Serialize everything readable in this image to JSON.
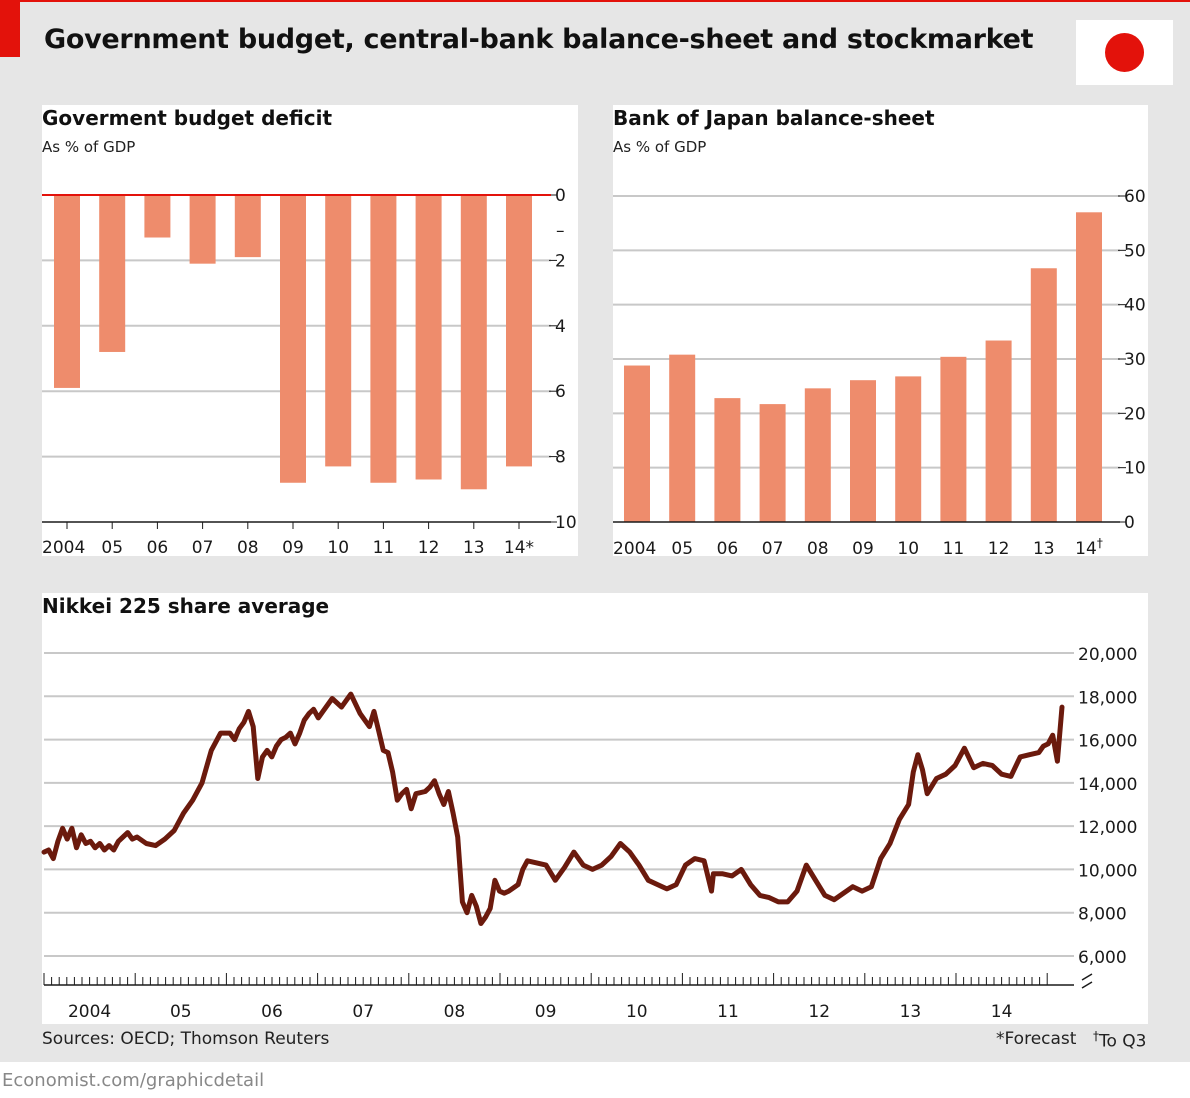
{
  "title": "Government budget, central-bank balance-sheet and stockmarket",
  "footer": {
    "sources": "Sources: OECD; Thomson Reuters",
    "note_forecast": "*Forecast",
    "note_q3_mark": "†",
    "note_q3_text": "To Q3",
    "brand": "Economist.com/graphicdetail"
  },
  "colors": {
    "bar": "#ee8c6c",
    "zero_line": "#e3120b",
    "nikkei_line": "#6b1a0d",
    "grid": "#c8c8c8",
    "panel_bg": "#ffffff",
    "page_bg": "#e6e6e6",
    "accent_red": "#e3120b"
  },
  "icons": {
    "flag": "japan-flag-icon",
    "axis_break": "axis-break-icon"
  },
  "chart_data": [
    {
      "id": "deficit",
      "type": "bar",
      "title": "Goverment budget deficit",
      "subtitle": "As % of GDP",
      "categories": [
        "2004",
        "05",
        "06",
        "07",
        "08",
        "09",
        "10",
        "11",
        "12",
        "13",
        "14*"
      ],
      "values": [
        5.9,
        4.8,
        1.3,
        2.1,
        1.9,
        8.8,
        8.3,
        8.8,
        8.7,
        9.0,
        8.3
      ],
      "ylim": [
        0,
        10
      ],
      "y_inverted": true,
      "yticks": [
        0,
        2,
        4,
        6,
        8,
        10
      ],
      "ytick_labels": [
        "0",
        "2",
        "4",
        "6",
        "8",
        "10"
      ],
      "minus_marker": "–",
      "axis_side": "right",
      "grid": true
    },
    {
      "id": "boj",
      "type": "bar",
      "title": "Bank of Japan balance-sheet",
      "subtitle": "As % of GDP",
      "categories": [
        "2004",
        "05",
        "06",
        "07",
        "08",
        "09",
        "10",
        "11",
        "12",
        "13",
        "14"
      ],
      "last_category_mark": "†",
      "values": [
        28.8,
        30.8,
        22.8,
        21.7,
        24.6,
        26.1,
        26.8,
        30.4,
        33.4,
        46.7,
        57.0
      ],
      "ylim": [
        0,
        60
      ],
      "yticks": [
        0,
        10,
        20,
        30,
        40,
        50,
        60
      ],
      "ytick_labels": [
        "0",
        "10",
        "20",
        "30",
        "40",
        "50",
        "60"
      ],
      "axis_side": "right",
      "grid": true
    },
    {
      "id": "nikkei",
      "type": "line",
      "title": "Nikkei 225 share average",
      "xlim": [
        2004.0,
        2014.95
      ],
      "ylim": [
        6000,
        20000
      ],
      "yticks": [
        6000,
        8000,
        10000,
        12000,
        14000,
        16000,
        18000,
        20000
      ],
      "ytick_labels": [
        "6,000",
        "8,000",
        "10,000",
        "12,000",
        "14,000",
        "16,000",
        "18,000",
        "20,000"
      ],
      "xtick_labels": [
        "2004",
        "05",
        "06",
        "07",
        "08",
        "09",
        "10",
        "11",
        "12",
        "13",
        "14"
      ],
      "axis_side": "right",
      "grid": true,
      "x": [
        2004.0,
        2004.05,
        2004.1,
        2004.15,
        2004.2,
        2004.25,
        2004.3,
        2004.35,
        2004.4,
        2004.45,
        2004.5,
        2004.55,
        2004.6,
        2004.65,
        2004.7,
        2004.75,
        2004.8,
        2004.85,
        2004.9,
        2004.95,
        2005.0,
        2005.1,
        2005.2,
        2005.3,
        2005.4,
        2005.5,
        2005.6,
        2005.7,
        2005.8,
        2005.9,
        2006.0,
        2006.05,
        2006.1,
        2006.15,
        2006.2,
        2006.25,
        2006.3,
        2006.35,
        2006.4,
        2006.45,
        2006.5,
        2006.55,
        2006.6,
        2006.65,
        2006.7,
        2006.75,
        2006.8,
        2006.85,
        2006.9,
        2006.95,
        2007.0,
        2007.1,
        2007.2,
        2007.3,
        2007.4,
        2007.5,
        2007.55,
        2007.6,
        2007.65,
        2007.7,
        2007.75,
        2007.8,
        2007.85,
        2007.9,
        2007.95,
        2008.0,
        2008.1,
        2008.15,
        2008.2,
        2008.25,
        2008.3,
        2008.35,
        2008.4,
        2008.45,
        2008.5,
        2008.55,
        2008.6,
        2008.65,
        2008.7,
        2008.75,
        2008.8,
        2008.85,
        2008.9,
        2008.95,
        2009.0,
        2009.1,
        2009.15,
        2009.2,
        2009.3,
        2009.4,
        2009.5,
        2009.6,
        2009.7,
        2009.8,
        2009.9,
        2010.0,
        2010.1,
        2010.2,
        2010.3,
        2010.4,
        2010.5,
        2010.6,
        2010.7,
        2010.8,
        2010.9,
        2011.0,
        2011.1,
        2011.18,
        2011.2,
        2011.3,
        2011.4,
        2011.5,
        2011.6,
        2011.7,
        2011.8,
        2011.9,
        2012.0,
        2012.1,
        2012.2,
        2012.3,
        2012.4,
        2012.5,
        2012.6,
        2012.7,
        2012.8,
        2012.9,
        2013.0,
        2013.1,
        2013.2,
        2013.3,
        2013.35,
        2013.4,
        2013.45,
        2013.5,
        2013.6,
        2013.7,
        2013.8,
        2013.9,
        2014.0,
        2014.05,
        2014.1,
        2014.2,
        2014.3,
        2014.4,
        2014.5,
        2014.6,
        2014.7,
        2014.75,
        2014.8,
        2014.85,
        2014.9,
        2014.95
      ],
      "y": [
        10800,
        10900,
        10500,
        11300,
        11900,
        11400,
        11900,
        11000,
        11600,
        11200,
        11300,
        11000,
        11200,
        10900,
        11100,
        10900,
        11300,
        11500,
        11700,
        11400,
        11500,
        11200,
        11100,
        11400,
        11800,
        12600,
        13200,
        14000,
        15500,
        16300,
        16300,
        16000,
        16500,
        16800,
        17300,
        16600,
        14200,
        15200,
        15500,
        15200,
        15700,
        16000,
        16100,
        16300,
        15800,
        16300,
        16900,
        17200,
        17400,
        17000,
        17300,
        17900,
        17500,
        18100,
        17200,
        16600,
        17300,
        16400,
        15500,
        15400,
        14500,
        13200,
        13500,
        13700,
        12800,
        13500,
        13600,
        13800,
        14100,
        13500,
        13000,
        13600,
        12600,
        11500,
        8500,
        8000,
        8800,
        8300,
        7500,
        7800,
        8200,
        9500,
        9000,
        8900,
        9000,
        9300,
        10000,
        10400,
        10300,
        10200,
        9500,
        10100,
        10800,
        10200,
        10000,
        10200,
        10600,
        11200,
        10800,
        10200,
        9500,
        9300,
        9100,
        9300,
        10200,
        10500,
        10400,
        9000,
        9800,
        9800,
        9700,
        10000,
        9300,
        8800,
        8700,
        8500,
        8500,
        9000,
        10200,
        9500,
        8800,
        8600,
        8900,
        9200,
        9000,
        9200,
        10500,
        11200,
        12300,
        13000,
        14500,
        15300,
        14600,
        13500,
        14200,
        14400,
        14800,
        15600,
        14700,
        14800,
        14900,
        14800,
        14400,
        14300,
        15200,
        15300,
        15400,
        15700,
        15800,
        16200,
        15000,
        17500
      ]
    }
  ]
}
